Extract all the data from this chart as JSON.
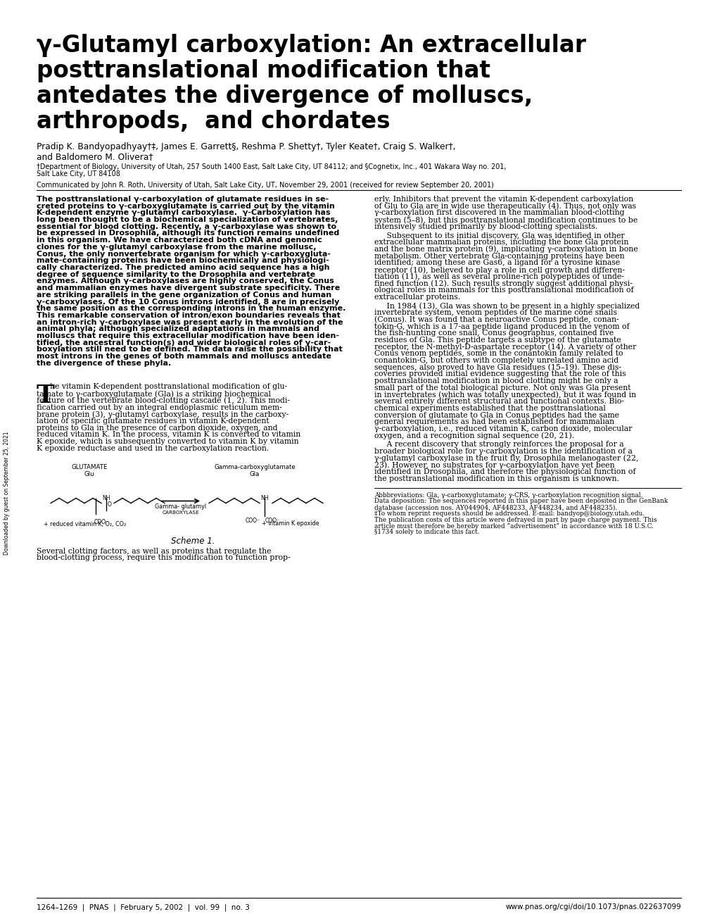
{
  "title_line1": "γ-Glutamyl carboxylation: An extracellular",
  "title_line2": "posttranslational modification that",
  "title_line3": "antedates the divergence of molluscs,",
  "title_line4": "arthropods,  and chordates",
  "authors": "Pradip K. Bandyopadhyay†‡, James E. Garrett§, Reshma P. Shetty†, Tyler Keate†, Craig S. Walker†,",
  "authors2": "and Baldomero M. Olivera†",
  "affil1": "†Department of Biology, University of Utah, 257 South 1400 East, Salt Lake City, UT 84112; and §Cognetix, Inc., 401 Wakara Way no. 201,",
  "affil2": "Salt Lake City, UT 84108",
  "communicated": "Communicated by John R. Roth, University of Utah, Salt Lake City, UT, November 29, 2001 (received for review September 20, 2001)",
  "abstract_bold_lines": [
    "The posttranslational γ-carboxylation of glutamate residues in se-",
    "creted proteins to γ-carboxyglutamate is carried out by the vitamin",
    "K-dependent enzyme γ-glutamyl carboxylase.  γ-Carboxylation has",
    "long been thought to be a biochemical specialization of vertebrates,",
    "essential for blood clotting. Recently, a γ-carboxylase was shown to",
    "be expressed in Drosophila, although its function remains undefined",
    "in this organism. We have characterized both cDNA and genomic",
    "clones for the γ-glutamyl carboxylase from the marine mollusc,",
    "Conus, the only nonvertebrate organism for which γ-carboxygluta-",
    "mate-containing proteins have been biochemically and physiologi-",
    "cally characterized. The predicted amino acid sequence has a high",
    "degree of sequence similarity to the Drosophila and vertebrate",
    "enzymes. Although γ-carboxylases are highly conserved, the Conus",
    "and mammalian enzymes have divergent substrate specificity. There",
    "are striking parallels in the gene organization of Conus and human",
    "γ-carboxylases. Of the 10 Conus introns identified, 8 are in precisely",
    "the same position as the corresponding introns in the human enzyme.",
    "This remarkable conservation of intron/exon boundaries reveals that",
    "an intron-rich γ-carboxylase was present early in the evolution of the",
    "animal phyla; although specialized adaptations in mammals and",
    "molluscs that require this extracellular modification have been iden-",
    "tified, the ancestral function(s) and wider biological roles of γ-car-",
    "boxylation still need to be defined. The data raise the possibility that",
    "most introns in the genes of both mammals and molluscs antedate",
    "the divergence of these phyla."
  ],
  "col2_para1": [
    "erly. Inhibitors that prevent the vitamin K-dependent carboxylation",
    "of Glu to Gla are in wide use therapeutically (4). Thus, not only was",
    "γ-carboxylation first discovered in the mammalian blood-clotting",
    "system (5–8), but this posttranslational modification continues to be",
    "intensively studied primarily by blood-clotting specialists."
  ],
  "col2_para2": [
    "     Subsequent to its initial discovery, Gla was identified in other",
    "extracellular mammalian proteins, including the bone Gla protein",
    "and the bone matrix protein (9), implicating γ-carboxylation in bone",
    "metabolism. Other vertebrate Gla-containing proteins have been",
    "identified; among these are Gas6, a ligand for a tyrosine kinase",
    "receptor (10), believed to play a role in cell growth and differen-",
    "tiation (11), as well as several proline-rich polypeptides of unde-",
    "fined function (12). Such results strongly suggest additional physi-",
    "ological roles in mammals for this posttranslational modification of",
    "extracellular proteins."
  ],
  "col2_para3": [
    "     In 1984 (13), Gla was shown to be present in a highly specialized",
    "invertebrate system, venom peptides of the marine cone snails",
    "(Conus). It was found that a neuroactive Conus peptide, conan-",
    "tokin-G, which is a 17-aa peptide ligand produced in the venom of",
    "the fish-hunting cone snail, Conus geographus, contained five",
    "residues of Gla. This peptide targets a subtype of the glutamate",
    "receptor, the N-methyl-D-aspartate receptor (14). A variety of other",
    "Conus venom peptides, some in the conantokin family related to",
    "conantokin-G, but others with completely unrelated amino acid",
    "sequences, also proved to have Gla residues (15–19). These dis-",
    "coveries provided initial evidence suggesting that the role of this",
    "posttranslational modification in blood clotting might be only a",
    "small part of the total biological picture. Not only was Gla present",
    "in invertebrates (which was totally unexpected), but it was found in",
    "several entirely different structural and functional contexts. Bio-",
    "chemical experiments established that the posttranslational",
    "conversion of glutamate to Gla in Conus peptides had the same",
    "general requirements as had been established for mammalian",
    "γ-carboxylation, i.e., reduced vitamin K, carbon dioxide, molecular",
    "oxygen, and a recognition signal sequence (20, 21)."
  ],
  "col2_para4": [
    "     A recent discovery that strongly reinforces the proposal for a",
    "broader biological role for γ-carboxylation is the identification of a",
    "γ-glutamyl carboxylase in the fruit fly, Drosophila melanogaster (22,",
    "23). However, no substrates for γ-carboxylation have yet been",
    "identified in Drosophila, and therefore the physiological function of",
    "the posttranslational modification in this organism is unknown."
  ],
  "col1_body_lines": [
    "he vitamin K-dependent posttranslational modification of glu-",
    "tamate to γ-carboxyglutamate (Gla) is a striking biochemical",
    "feature of the vertebrate blood-clotting cascade (1, 2). This modi-",
    "fication carried out by an integral endoplasmic reticulum mem-",
    "brane protein (3), γ-glutamyl carboxylase, results in the carboxy-",
    "lation of specific glutamate residues in vitamin K-dependent",
    "proteins to Gla in the presence of carbon dioxide, oxygen, and",
    "reduced vitamin K. In the process, vitamin K is converted to vitamin",
    "K epoxide, which is subsequently converted to vitamin K by vitamin",
    "K epoxide reductase and used in the carboxylation reaction."
  ],
  "col1_body2_lines": [
    "Several clotting factors, as well as proteins that regulate the",
    "blood-clotting process, require this modification to function prop-"
  ],
  "abbrev": "Abbbreviations: Gla, γ-carboxyglutamate; γ-CRS, γ-carboxylation recognition signal.",
  "data_dep1": "Data deposition: The sequences reported in this paper have been deposited in the GenBank",
  "data_dep2": "database (accession nos. AY044904, AF448233, AF448234, and AF448235).",
  "reprint": "‡To whom reprint requests should be addressed. E-mail: bandyop@biology.utah.edu.",
  "pub_cost1": "The publication costs of this article were defrayed in part by page charge payment. This",
  "pub_cost2": "article must therefore be hereby marked “advertisement” in accordance with 18 U.S.C.",
  "pub_cost3": "§1734 solely to indicate this fact.",
  "footer_left": "1264–1269  |  PNAS  |  February 5, 2002  |  vol. 99  |  no. 3",
  "footer_right": "www.pnas.org/cgi/doi/10.1073/pnas.022637099",
  "side_text": "Downloaded by guest on September 25, 2021",
  "background_color": "#ffffff"
}
